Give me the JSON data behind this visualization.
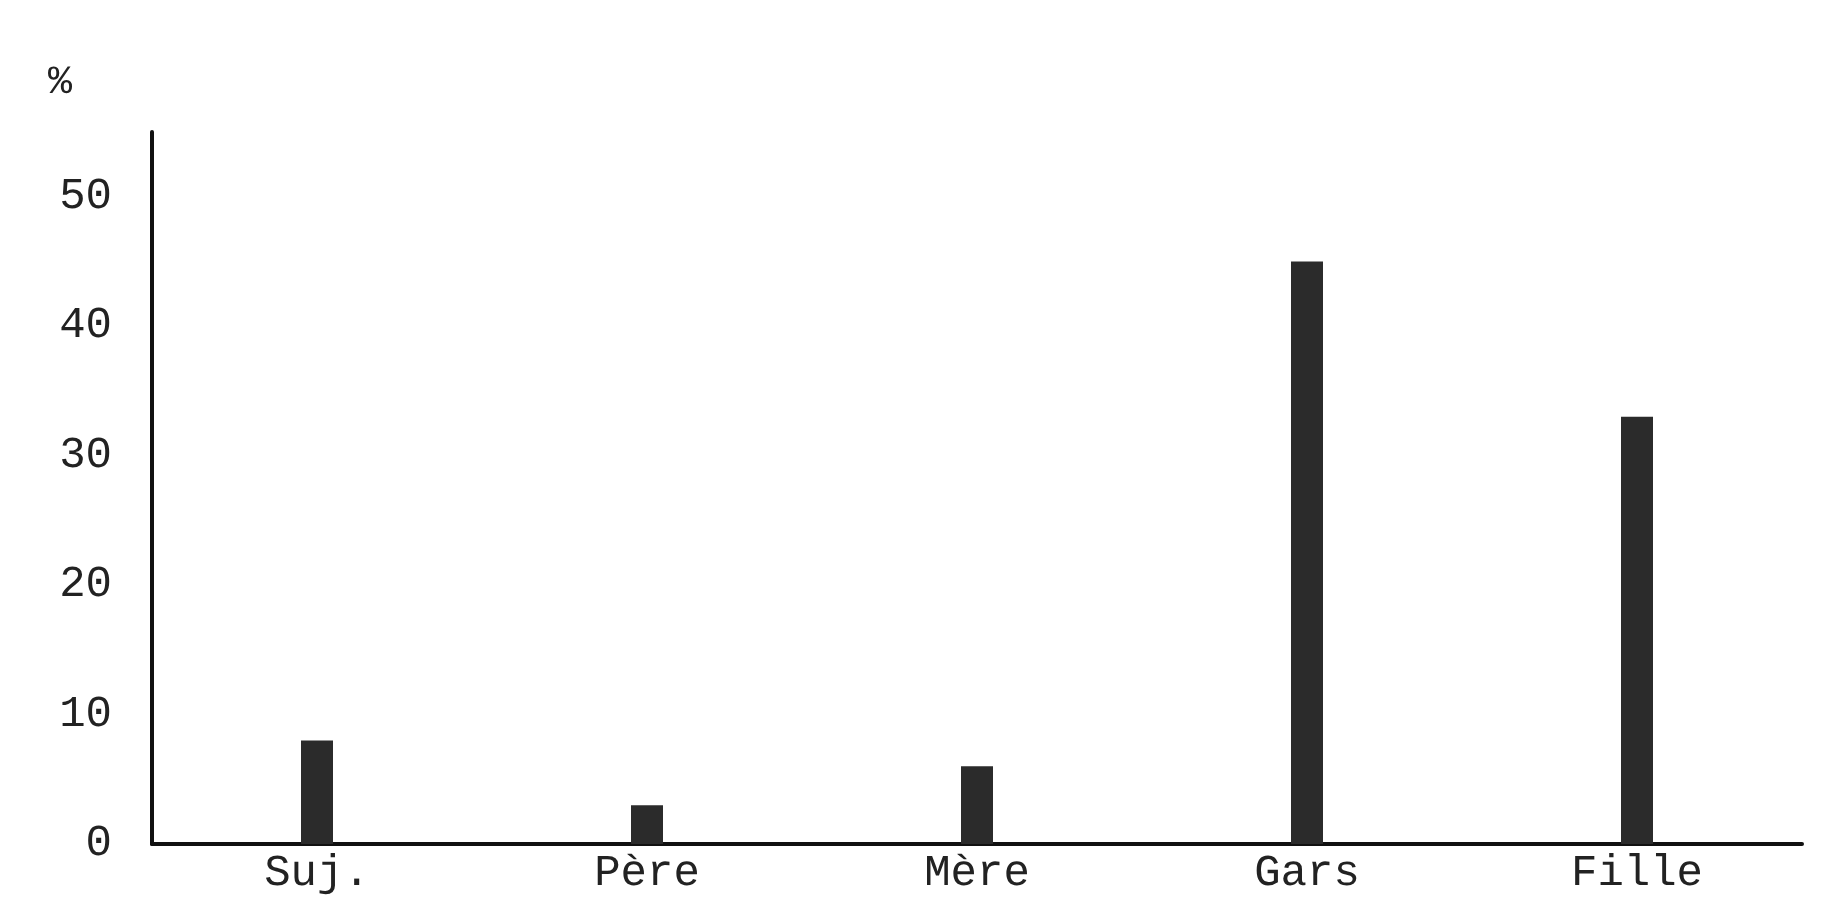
{
  "chart_data": {
    "type": "bar",
    "ylabel": "%",
    "categories": [
      "Suj.",
      "Père",
      "Mère",
      "Gars",
      "Fille"
    ],
    "values": [
      8,
      3,
      6,
      45,
      33
    ],
    "color": "#2b2b2b",
    "ylim": [
      0,
      55
    ],
    "yticks": [
      0,
      10,
      20,
      30,
      40,
      50
    ],
    "grid": false
  }
}
